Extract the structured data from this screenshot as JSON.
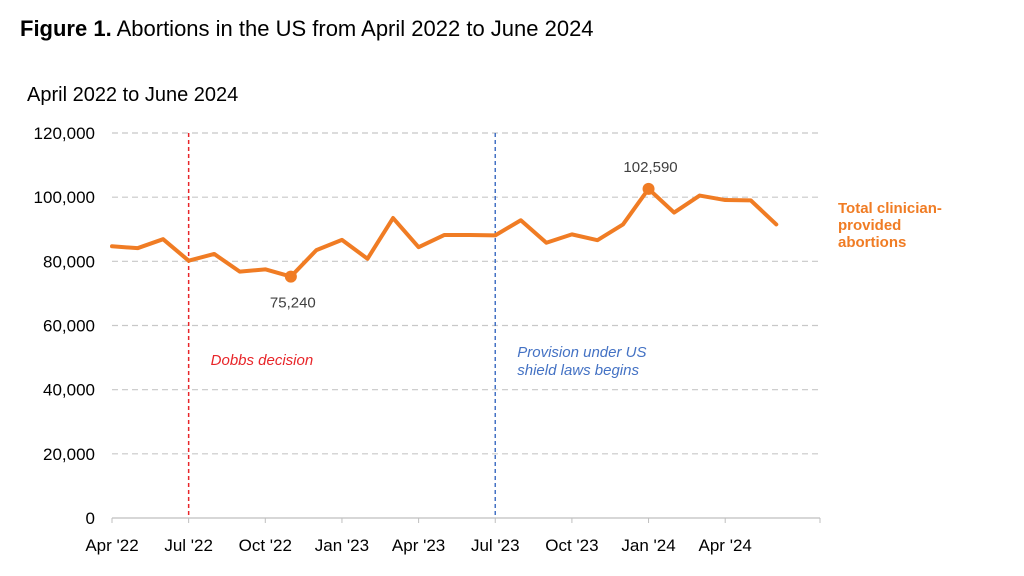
{
  "figure": {
    "title_bold": "Figure 1.",
    "title_rest": "Abortions in the US from April 2022 to June 2024"
  },
  "colors": {
    "series": "#F07C24",
    "dobbs_line": "#E8262A",
    "shield_line": "#4472C4",
    "gridline": "#C8C8C8"
  },
  "chart_data": {
    "type": "line",
    "subtitle": "April 2022 to June 2024",
    "x": [
      "2022-04",
      "2022-05",
      "2022-06",
      "2022-07",
      "2022-08",
      "2022-09",
      "2022-10",
      "2022-11",
      "2022-12",
      "2023-01",
      "2023-02",
      "2023-03",
      "2023-04",
      "2023-05",
      "2023-06",
      "2023-07",
      "2023-08",
      "2023-09",
      "2023-10",
      "2023-11",
      "2023-12",
      "2024-01",
      "2024-02",
      "2024-03",
      "2024-04",
      "2024-05",
      "2024-06"
    ],
    "series": [
      {
        "name": "Total clinician-provided abortions",
        "label_lines": [
          "Total clinician-",
          "provided",
          "abortions"
        ],
        "values": [
          84700,
          84100,
          86900,
          80200,
          82300,
          76800,
          77500,
          75240,
          83500,
          86700,
          80800,
          93500,
          84400,
          88200,
          88200,
          88100,
          92800,
          85800,
          88400,
          86600,
          91500,
          102590,
          95200,
          100500,
          99100,
          99000,
          91500
        ]
      }
    ],
    "ylim": [
      0,
      120000
    ],
    "yticks": [
      0,
      20000,
      40000,
      60000,
      80000,
      100000,
      120000
    ],
    "ytick_labels": [
      "0",
      "20,000",
      "40,000",
      "60,000",
      "80,000",
      "100,000",
      "120,000"
    ],
    "xtick_labels": [
      {
        "x": "2022-04",
        "label": "Apr '22"
      },
      {
        "x": "2022-07",
        "label": "Jul '22"
      },
      {
        "x": "2022-10",
        "label": "Oct '22"
      },
      {
        "x": "2023-01",
        "label": "Jan '23"
      },
      {
        "x": "2023-04",
        "label": "Apr '23"
      },
      {
        "x": "2023-07",
        "label": "Jul '23"
      },
      {
        "x": "2023-10",
        "label": "Oct '23"
      },
      {
        "x": "2024-01",
        "label": "Jan '24"
      },
      {
        "x": "2024-04",
        "label": "Apr '24"
      }
    ],
    "grid": true,
    "data_labels": [
      {
        "x": "2022-11",
        "label": "75,240",
        "position": "below"
      },
      {
        "x": "2024-01",
        "label": "102,590",
        "position": "above"
      }
    ],
    "annotations": [
      {
        "x": "2022-07",
        "lines": [
          "Dobbs decision"
        ],
        "style": "dobbs"
      },
      {
        "x": "2023-07",
        "lines": [
          "Provision under US",
          "shield laws begins"
        ],
        "style": "shield"
      }
    ]
  }
}
